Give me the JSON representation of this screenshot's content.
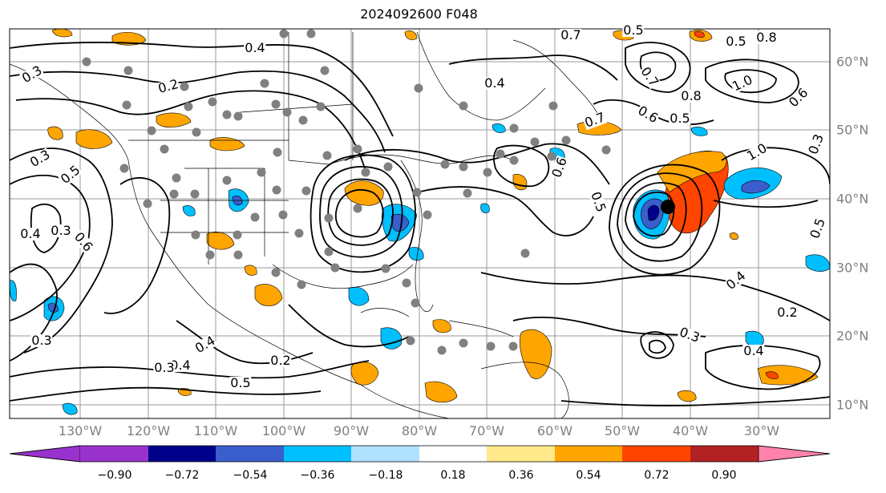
{
  "title": "2024092600 F048",
  "longitude_labels": [
    "130°W",
    "120°W",
    "110°W",
    "100°W",
    "90°W",
    "80°W",
    "70°W",
    "60°W",
    "50°W",
    "40°W",
    "30°W"
  ],
  "latitude_labels": [
    "60°N",
    "50°N",
    "40°N",
    "30°N",
    "20°N",
    "10°N"
  ],
  "colorbar": {
    "ticks": [
      "−0.90",
      "−0.72",
      "−0.54",
      "−0.36",
      "−0.18",
      "0.18",
      "0.36",
      "0.54",
      "0.72",
      "0.90"
    ],
    "colors": [
      "#9932cc",
      "#00008b",
      "#3a5fcd",
      "#00bfff",
      "#b0e2ff",
      "#ffffff",
      "#ffe98a",
      "#ffa500",
      "#ff4500",
      "#b22222",
      "#ff82ab"
    ]
  },
  "contour_labels": [
    "0.4",
    "0.2",
    "0.4",
    "0.5",
    "0.7",
    "0.5",
    "0.8",
    "0.7",
    "1.0",
    "0.8",
    "1.0",
    "0.6",
    "0.5",
    "0.3",
    "0.3",
    "0.4",
    "0.3",
    "0.5",
    "0.6",
    "0.3",
    "0.4",
    "0.2",
    "0.4",
    "0.5",
    "0.3",
    "0.4",
    "0.6",
    "0.3",
    "0.5",
    "0.4",
    "0.2",
    "0.3",
    "0.6",
    "0.7",
    "0.5"
  ],
  "storm_center_marker": "black-dot",
  "station_marker": "gray-dot"
}
